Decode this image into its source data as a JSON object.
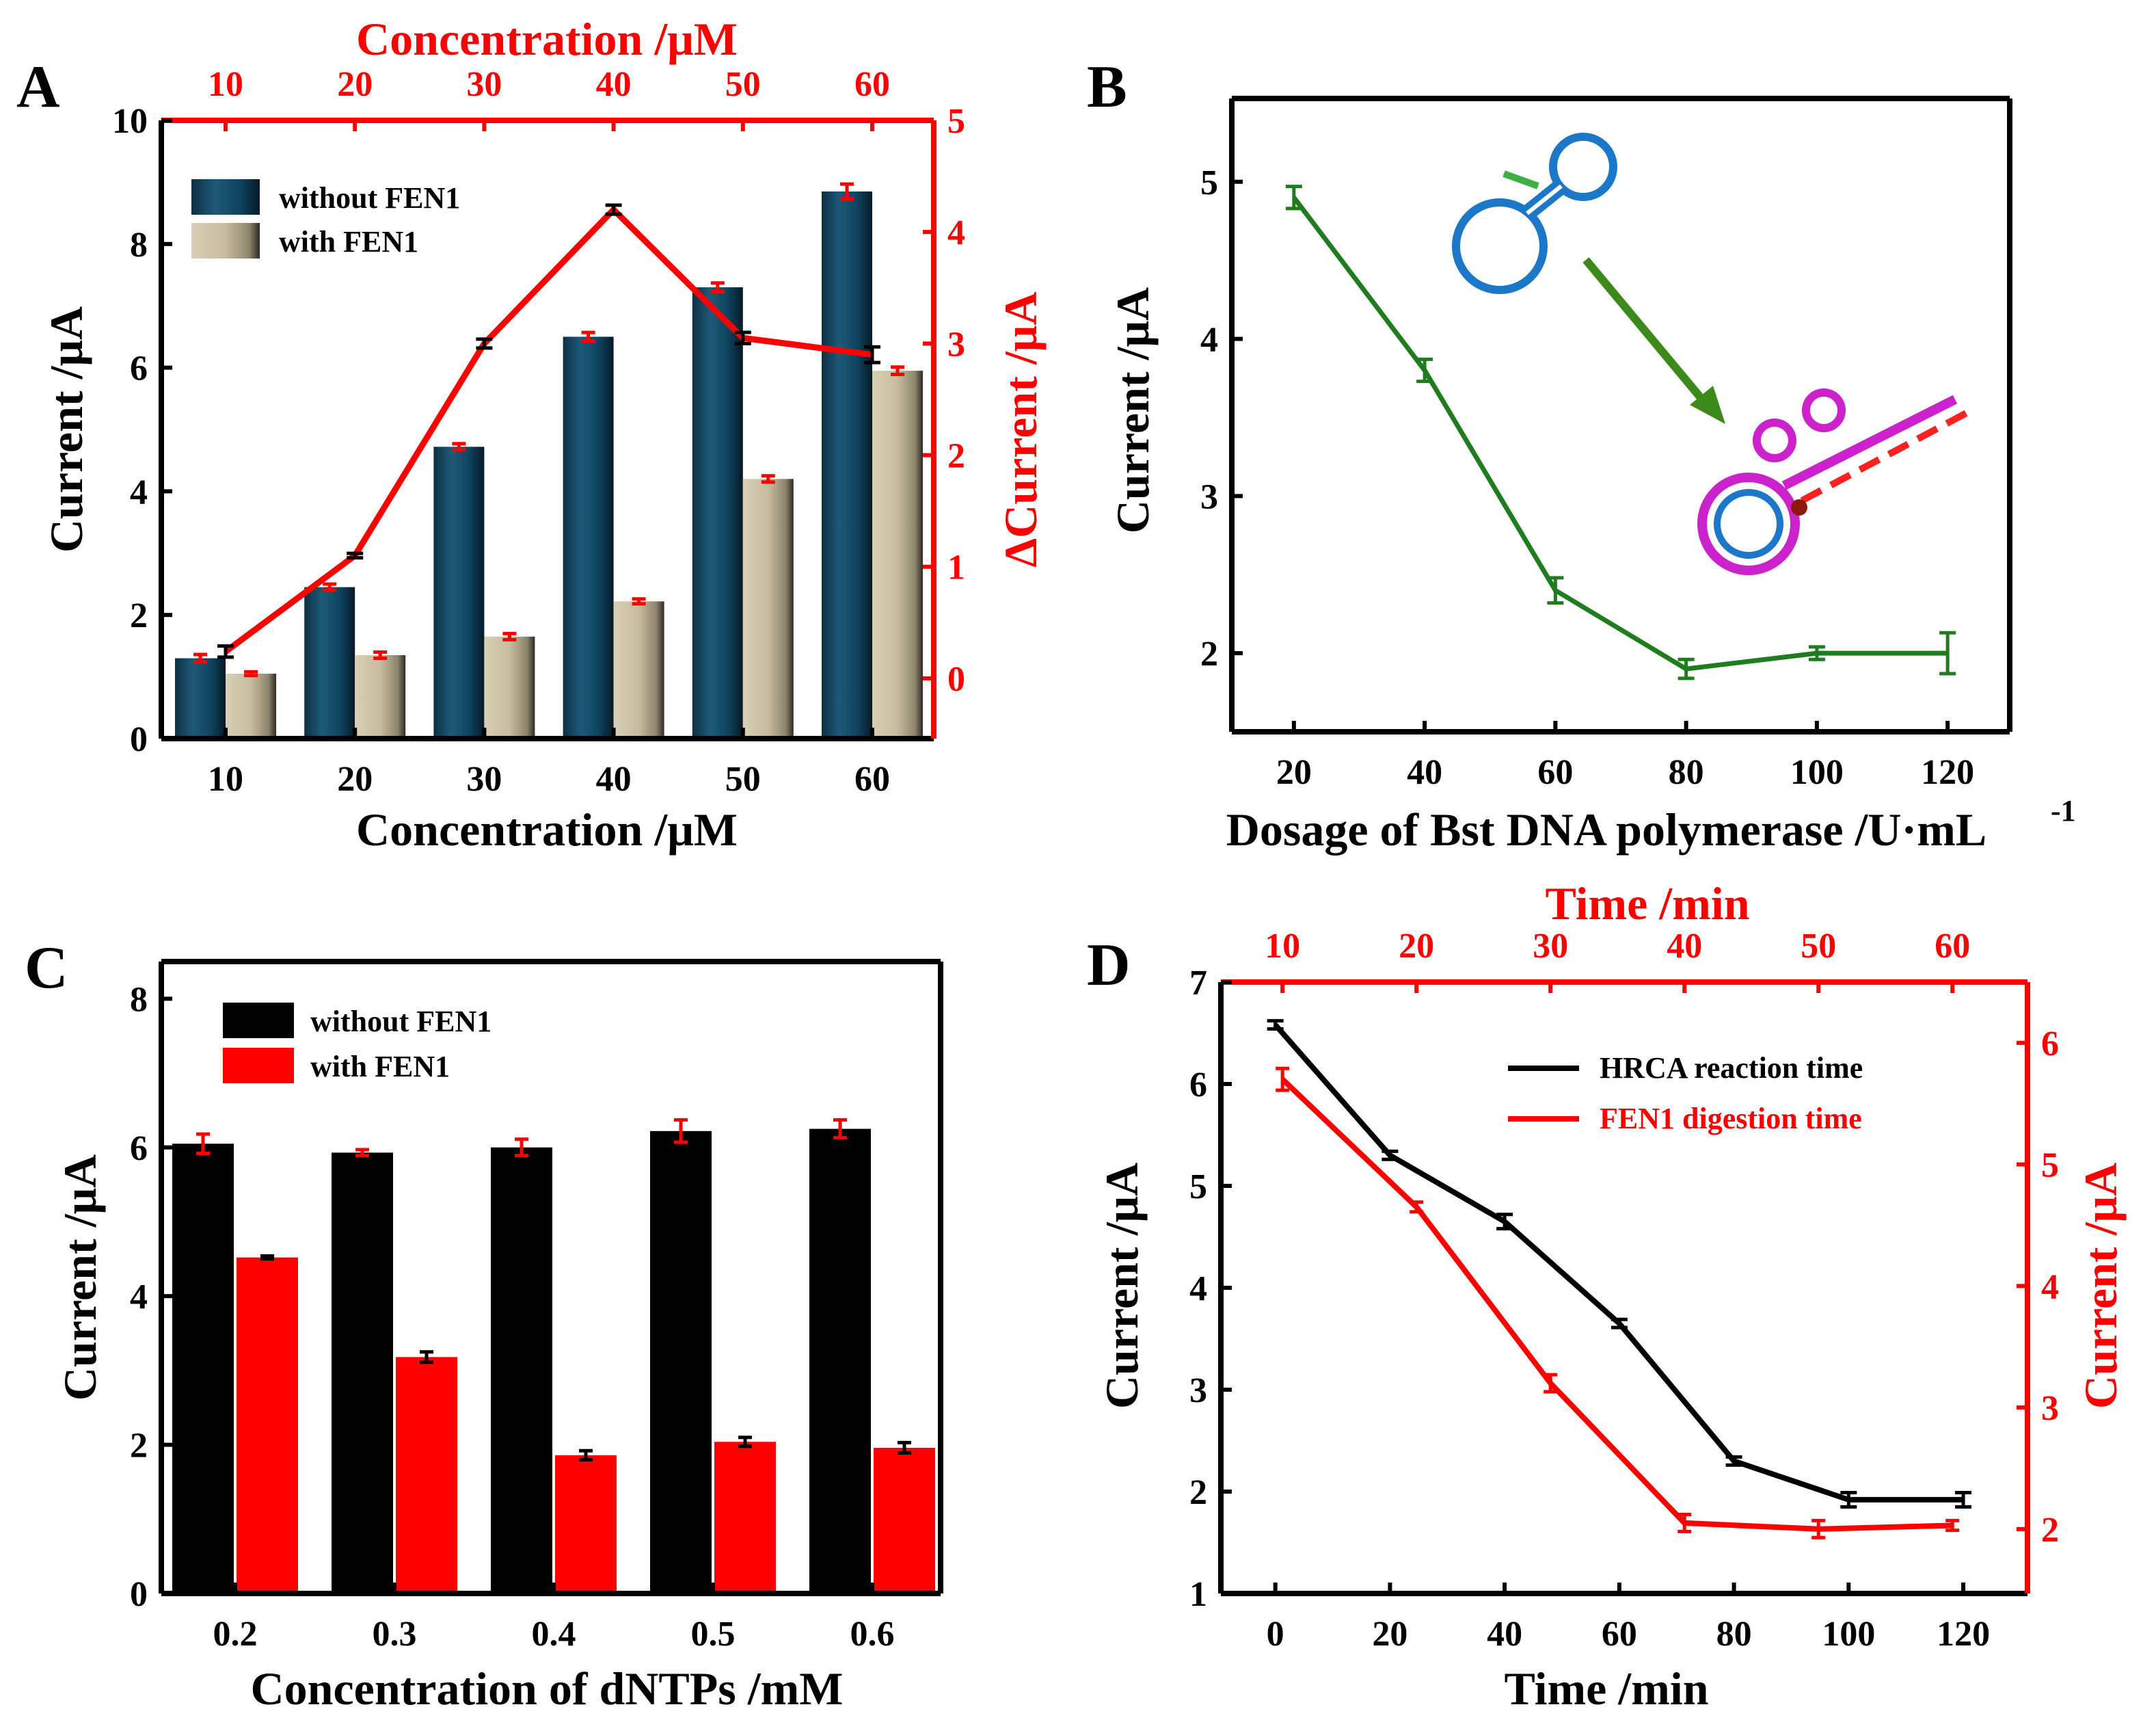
{
  "chart_data": [
    {
      "panel_label": "A",
      "type": "bar",
      "title": "",
      "categories": [
        10,
        20,
        30,
        40,
        50,
        60
      ],
      "xlabel": "Concentration /μM",
      "top_xlabel": "Concentration /μM",
      "top_xticks": [
        10,
        20,
        30,
        40,
        50,
        60
      ],
      "ylabel": "Current /μA",
      "y2label": "ΔCurrent /μA",
      "ylim": [
        0,
        10
      ],
      "yticks": [
        0,
        2,
        4,
        6,
        8,
        10
      ],
      "y2lim": [
        -0.54,
        5
      ],
      "y2ticks": [
        0,
        1,
        2,
        3,
        4,
        5
      ],
      "legend": "top-left",
      "series": [
        {
          "name": "without FEN1",
          "values": [
            1.3,
            2.45,
            4.72,
            6.5,
            7.3,
            8.85
          ],
          "errors": [
            0.06,
            0.05,
            0.05,
            0.07,
            0.07,
            0.12
          ],
          "color": "#1d5470"
        },
        {
          "name": "with FEN1",
          "values": [
            1.05,
            1.35,
            1.65,
            2.22,
            4.2,
            5.95
          ],
          "errors": [
            0.03,
            0.05,
            0.05,
            0.04,
            0.05,
            0.06
          ],
          "color": "#c8bd9f"
        }
      ],
      "line_series": {
        "name": "ΔCurrent",
        "axis": "right",
        "values": [
          0.24,
          1.1,
          3.0,
          4.2,
          3.05,
          2.9
        ],
        "errors": [
          0.05,
          0.02,
          0.04,
          0.04,
          0.05,
          0.07
        ],
        "color": "#ff0000"
      }
    },
    {
      "panel_label": "B",
      "type": "line",
      "title": "",
      "x": [
        20,
        40,
        60,
        80,
        100,
        120
      ],
      "xlabel": "Dosage of Bst DNA polymerase /U·mL",
      "xlabel_superscript": "-1",
      "xlim": [
        10.5,
        129.5
      ],
      "xticks": [
        20,
        40,
        60,
        80,
        100,
        120
      ],
      "ylabel": "Current /μA",
      "ylim": [
        1.5,
        5.53
      ],
      "yticks": [
        2,
        3,
        4,
        5
      ],
      "series": [
        {
          "name": "Current",
          "values": [
            4.9,
            3.8,
            2.4,
            1.9,
            2.0,
            2.0
          ],
          "errors": [
            0.07,
            0.07,
            0.08,
            0.06,
            0.04,
            0.13
          ],
          "color": "#1f7d1f"
        }
      ]
    },
    {
      "panel_label": "C",
      "type": "bar",
      "title": "",
      "categories": [
        "0.2",
        "0.3",
        "0.4",
        "0.5",
        "0.6"
      ],
      "xlabel": "Concentration of dNTPs /mM",
      "ylabel": "Current /μA",
      "ylim": [
        0,
        8.5
      ],
      "yticks": [
        0,
        2,
        4,
        6,
        8
      ],
      "legend": "top-left",
      "series": [
        {
          "name": "without FEN1",
          "values": [
            6.05,
            5.93,
            6.0,
            6.22,
            6.25
          ],
          "errors": [
            0.13,
            0.04,
            0.11,
            0.15,
            0.12
          ],
          "color": "#000000",
          "error_color": "#ff0000"
        },
        {
          "name": "with FEN1",
          "values": [
            4.52,
            3.18,
            1.86,
            2.04,
            1.96
          ],
          "errors": [
            0.02,
            0.07,
            0.06,
            0.06,
            0.07
          ],
          "color": "#ff0000",
          "error_color": "#000000"
        }
      ]
    },
    {
      "panel_label": "D",
      "type": "line",
      "title": "",
      "xlabel": "Time /min",
      "top_xlabel": "Time /min",
      "xlim": [
        -9.5,
        131.2
      ],
      "xticks": [
        0,
        20,
        40,
        60,
        80,
        100,
        120
      ],
      "top_xlim": [
        5.4,
        65.6
      ],
      "top_xticks": [
        10,
        20,
        30,
        40,
        50,
        60
      ],
      "ylabel": "Current /μA",
      "y2label": "Current /μA",
      "ylim": [
        1,
        7
      ],
      "yticks": [
        1,
        2,
        3,
        4,
        5,
        6,
        7
      ],
      "y2lim": [
        1.47,
        6.5
      ],
      "y2ticks": [
        2,
        3,
        4,
        5,
        6
      ],
      "legend": "top-right",
      "series": [
        {
          "name": "HRCA reaction time",
          "axis": "bottom-left",
          "x": [
            0,
            20,
            40,
            60,
            80,
            100,
            120
          ],
          "values": [
            6.58,
            5.3,
            4.65,
            3.65,
            2.3,
            1.92,
            1.92
          ],
          "errors": [
            0.04,
            0.04,
            0.07,
            0.04,
            0.04,
            0.07,
            0.07
          ],
          "color": "#000000"
        },
        {
          "name": "FEN1 digestion time",
          "axis": "top-right",
          "x": [
            10,
            20,
            30,
            40,
            50,
            60
          ],
          "values": [
            5.7,
            4.65,
            3.2,
            2.05,
            2.0,
            2.03
          ],
          "errors": [
            0.09,
            0.04,
            0.07,
            0.07,
            0.07,
            0.04
          ],
          "color": "#ff0000"
        }
      ]
    }
  ]
}
